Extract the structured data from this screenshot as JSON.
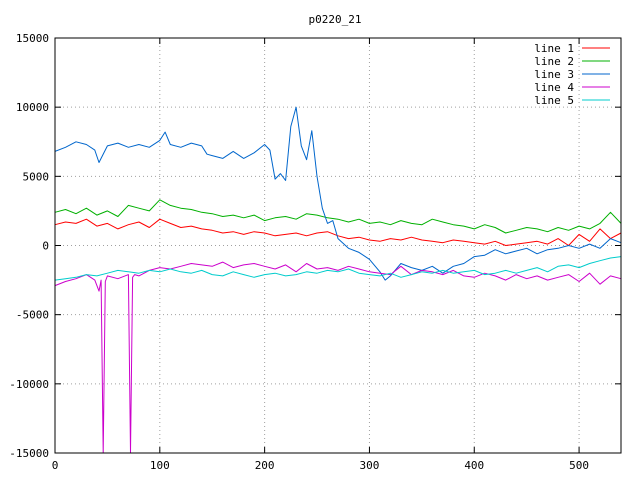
{
  "chart_data": {
    "type": "line",
    "title": "p0220_21",
    "xlabel": "",
    "ylabel": "",
    "xlim": [
      0,
      540
    ],
    "ylim": [
      -15000,
      15000
    ],
    "xticks": [
      0,
      100,
      200,
      300,
      400,
      500
    ],
    "yticks": [
      -15000,
      -10000,
      -5000,
      0,
      5000,
      10000,
      15000
    ],
    "grid": true,
    "legend_position": "top-right",
    "series": [
      {
        "name": "line 1",
        "color": "#ff0000",
        "x": [
          0,
          10,
          20,
          30,
          40,
          50,
          60,
          70,
          80,
          90,
          100,
          110,
          120,
          130,
          140,
          150,
          160,
          170,
          180,
          190,
          200,
          210,
          220,
          230,
          240,
          250,
          260,
          270,
          280,
          290,
          300,
          310,
          320,
          330,
          340,
          350,
          360,
          370,
          380,
          390,
          400,
          410,
          420,
          430,
          440,
          450,
          460,
          470,
          480,
          490,
          500,
          510,
          520,
          530,
          540
        ],
        "y": [
          1500,
          1700,
          1600,
          1900,
          1400,
          1600,
          1200,
          1500,
          1700,
          1300,
          1900,
          1600,
          1300,
          1400,
          1200,
          1100,
          900,
          1000,
          800,
          1000,
          900,
          700,
          800,
          900,
          700,
          900,
          1000,
          700,
          500,
          600,
          400,
          300,
          500,
          400,
          600,
          400,
          300,
          200,
          400,
          300,
          200,
          100,
          300,
          0,
          100,
          200,
          300,
          100,
          500,
          0,
          800,
          300,
          1200,
          500,
          900
        ]
      },
      {
        "name": "line 2",
        "color": "#00b000",
        "x": [
          0,
          10,
          20,
          30,
          40,
          50,
          60,
          70,
          80,
          90,
          100,
          110,
          120,
          130,
          140,
          150,
          160,
          170,
          180,
          190,
          200,
          210,
          220,
          230,
          240,
          250,
          260,
          270,
          280,
          290,
          300,
          310,
          320,
          330,
          340,
          350,
          360,
          370,
          380,
          390,
          400,
          410,
          420,
          430,
          440,
          450,
          460,
          470,
          480,
          490,
          500,
          510,
          520,
          530,
          540
        ],
        "y": [
          2400,
          2600,
          2300,
          2700,
          2200,
          2500,
          2100,
          2900,
          2700,
          2500,
          3300,
          2900,
          2700,
          2600,
          2400,
          2300,
          2100,
          2200,
          2000,
          2200,
          1800,
          2000,
          2100,
          1900,
          2300,
          2200,
          2000,
          1900,
          1700,
          1900,
          1600,
          1700,
          1500,
          1800,
          1600,
          1500,
          1900,
          1700,
          1500,
          1400,
          1200,
          1500,
          1300,
          900,
          1100,
          1300,
          1200,
          1000,
          1300,
          1100,
          1400,
          1200,
          1600,
          2400,
          1600
        ]
      },
      {
        "name": "line 3",
        "color": "#0066cc",
        "x": [
          0,
          10,
          20,
          30,
          38,
          42,
          50,
          60,
          70,
          80,
          90,
          100,
          105,
          110,
          120,
          130,
          140,
          145,
          150,
          160,
          170,
          180,
          190,
          200,
          205,
          210,
          215,
          220,
          225,
          230,
          235,
          240,
          245,
          250,
          255,
          260,
          265,
          270,
          280,
          290,
          300,
          310,
          315,
          320,
          330,
          340,
          350,
          360,
          370,
          380,
          390,
          400,
          410,
          420,
          430,
          440,
          450,
          460,
          470,
          480,
          490,
          500,
          510,
          520,
          530,
          540
        ],
        "y": [
          6800,
          7100,
          7500,
          7300,
          6900,
          6000,
          7200,
          7400,
          7100,
          7300,
          7100,
          7600,
          8200,
          7300,
          7100,
          7400,
          7200,
          6600,
          6500,
          6300,
          6800,
          6300,
          6700,
          7300,
          6900,
          4800,
          5200,
          4700,
          8600,
          10000,
          7200,
          6200,
          8300,
          5000,
          2700,
          1600,
          1800,
          500,
          -200,
          -500,
          -1000,
          -1900,
          -2500,
          -2200,
          -1300,
          -1600,
          -1800,
          -1500,
          -2000,
          -1500,
          -1300,
          -800,
          -700,
          -300,
          -600,
          -400,
          -200,
          -600,
          -300,
          -200,
          0,
          -200,
          100,
          -200,
          500,
          200
        ]
      },
      {
        "name": "line 4",
        "color": "#cc00cc",
        "x": [
          0,
          10,
          20,
          30,
          38,
          42,
          44,
          46,
          48,
          50,
          60,
          70,
          72,
          74,
          76,
          80,
          90,
          100,
          110,
          120,
          130,
          140,
          150,
          160,
          170,
          180,
          190,
          200,
          210,
          220,
          230,
          240,
          250,
          260,
          270,
          280,
          290,
          300,
          310,
          320,
          330,
          340,
          350,
          360,
          370,
          380,
          390,
          400,
          410,
          420,
          430,
          440,
          450,
          460,
          470,
          480,
          490,
          500,
          510,
          520,
          530,
          540
        ],
        "y": [
          -2900,
          -2600,
          -2400,
          -2100,
          -2500,
          -3300,
          -2500,
          -15000,
          -2600,
          -2200,
          -2400,
          -2100,
          -15000,
          -2300,
          -2100,
          -2200,
          -1800,
          -1600,
          -1700,
          -1500,
          -1300,
          -1400,
          -1500,
          -1200,
          -1600,
          -1400,
          -1300,
          -1500,
          -1700,
          -1400,
          -1900,
          -1300,
          -1700,
          -1600,
          -1800,
          -1500,
          -1700,
          -1900,
          -2000,
          -2100,
          -1500,
          -2100,
          -1800,
          -1900,
          -2100,
          -1800,
          -2200,
          -2300,
          -2000,
          -2200,
          -2500,
          -2100,
          -2400,
          -2200,
          -2500,
          -2300,
          -2100,
          -2600,
          -2000,
          -2800,
          -2200,
          -2400
        ]
      },
      {
        "name": "line 5",
        "color": "#00cccc",
        "x": [
          0,
          10,
          20,
          30,
          40,
          50,
          60,
          70,
          80,
          90,
          100,
          110,
          120,
          130,
          140,
          150,
          160,
          170,
          180,
          190,
          200,
          210,
          220,
          230,
          240,
          250,
          260,
          270,
          280,
          290,
          300,
          310,
          320,
          330,
          340,
          350,
          360,
          370,
          380,
          390,
          400,
          410,
          420,
          430,
          440,
          450,
          460,
          470,
          480,
          490,
          500,
          510,
          520,
          530,
          540
        ],
        "y": [
          -2500,
          -2400,
          -2300,
          -2100,
          -2200,
          -2000,
          -1800,
          -1900,
          -2000,
          -1800,
          -1900,
          -1700,
          -1900,
          -2000,
          -1800,
          -2100,
          -2200,
          -1900,
          -2100,
          -2300,
          -2100,
          -2000,
          -2200,
          -2100,
          -1900,
          -2000,
          -1800,
          -1900,
          -1700,
          -2000,
          -2100,
          -2200,
          -2000,
          -2300,
          -2100,
          -1900,
          -2000,
          -1800,
          -2000,
          -1900,
          -1800,
          -2100,
          -2000,
          -1800,
          -2000,
          -1800,
          -1600,
          -1900,
          -1500,
          -1400,
          -1600,
          -1300,
          -1100,
          -900,
          -800
        ]
      }
    ]
  }
}
